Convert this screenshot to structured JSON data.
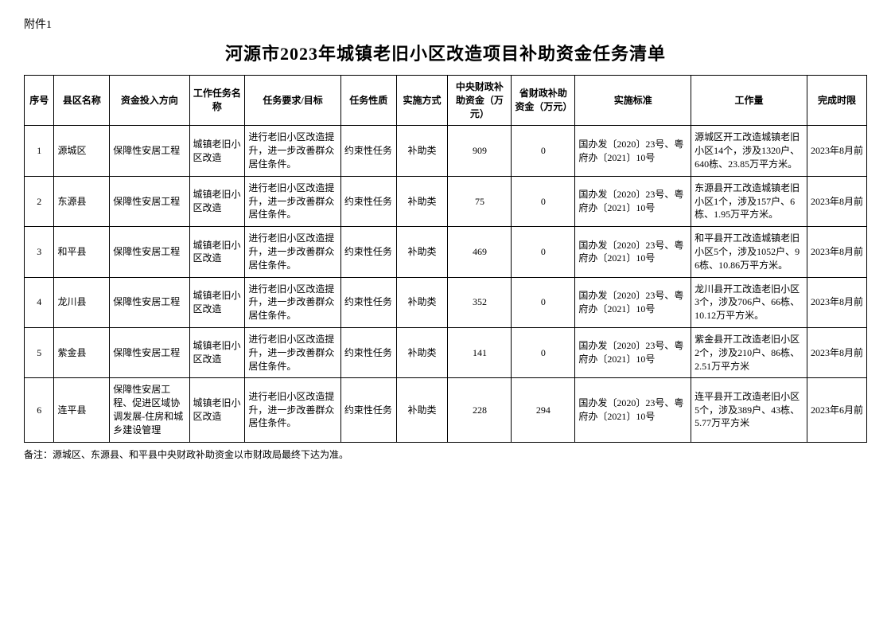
{
  "attachment": "附件1",
  "title": "河源市2023年城镇老旧小区改造项目补助资金任务清单",
  "columns": {
    "seq": "序号",
    "county": "县区名称",
    "direction": "资金投入方向",
    "taskname": "工作任务名称",
    "requirement": "任务要求/目标",
    "nature": "任务性质",
    "method": "实施方式",
    "central": "中央财政补助资金（万元）",
    "province": "省财政补助资金（万元）",
    "standard": "实施标准",
    "workload": "工作量",
    "deadline": "完成时限"
  },
  "rows": [
    {
      "seq": "1",
      "county": "源城区",
      "direction": "保障性安居工程",
      "taskname": "城镇老旧小区改造",
      "requirement": "进行老旧小区改造提升，进一步改善群众居住条件。",
      "nature": "约束性任务",
      "method": "补助类",
      "central": "909",
      "province": "0",
      "standard": "国办发〔2020〕23号、粤府办〔2021〕10号",
      "workload": "源城区开工改造城镇老旧小区14个，涉及1320户、640栋、23.85万平方米。",
      "deadline": "2023年8月前"
    },
    {
      "seq": "2",
      "county": "东源县",
      "direction": "保障性安居工程",
      "taskname": "城镇老旧小区改造",
      "requirement": "进行老旧小区改造提升，进一步改善群众居住条件。",
      "nature": "约束性任务",
      "method": "补助类",
      "central": "75",
      "province": "0",
      "standard": "国办发〔2020〕23号、粤府办〔2021〕10号",
      "workload": "东源县开工改造城镇老旧小区1个，涉及157户、6栋、1.95万平方米。",
      "deadline": "2023年8月前"
    },
    {
      "seq": "3",
      "county": "和平县",
      "direction": "保障性安居工程",
      "taskname": "城镇老旧小区改造",
      "requirement": "进行老旧小区改造提升，进一步改善群众居住条件。",
      "nature": "约束性任务",
      "method": "补助类",
      "central": "469",
      "province": "0",
      "standard": "国办发〔2020〕23号、粤府办〔2021〕10号",
      "workload": "和平县开工改造城镇老旧小区5个，涉及1052户、96栋、10.86万平方米。",
      "deadline": "2023年8月前"
    },
    {
      "seq": "4",
      "county": "龙川县",
      "direction": "保障性安居工程",
      "taskname": "城镇老旧小区改造",
      "requirement": "进行老旧小区改造提升，进一步改善群众居住条件。",
      "nature": "约束性任务",
      "method": "补助类",
      "central": "352",
      "province": "0",
      "standard": "国办发〔2020〕23号、粤府办〔2021〕10号",
      "workload": "龙川县开工改造老旧小区3个，涉及706户、66栋、10.12万平方米。",
      "deadline": "2023年8月前"
    },
    {
      "seq": "5",
      "county": "紫金县",
      "direction": "保障性安居工程",
      "taskname": "城镇老旧小区改造",
      "requirement": "进行老旧小区改造提升，进一步改善群众居住条件。",
      "nature": "约束性任务",
      "method": "补助类",
      "central": "141",
      "province": "0",
      "standard": "国办发〔2020〕23号、粤府办〔2021〕10号",
      "workload": "紫金县开工改造老旧小区2个，涉及210户、86栋、2.51万平方米",
      "deadline": "2023年8月前"
    },
    {
      "seq": "6",
      "county": "连平县",
      "direction": "保障性安居工程、促进区域协调发展-住房和城乡建设管理",
      "taskname": "城镇老旧小区改造",
      "requirement": "进行老旧小区改造提升，进一步改善群众居住条件。",
      "nature": "约束性任务",
      "method": "补助类",
      "central": "228",
      "province": "294",
      "standard": "国办发〔2020〕23号、粤府办〔2021〕10号",
      "workload": "连平县开工改造老旧小区5个，涉及389户、43栋、5.77万平方米",
      "deadline": "2023年6月前"
    }
  ],
  "footnote": "备注：源城区、东源县、和平县中央财政补助资金以市财政局最终下达为准。"
}
